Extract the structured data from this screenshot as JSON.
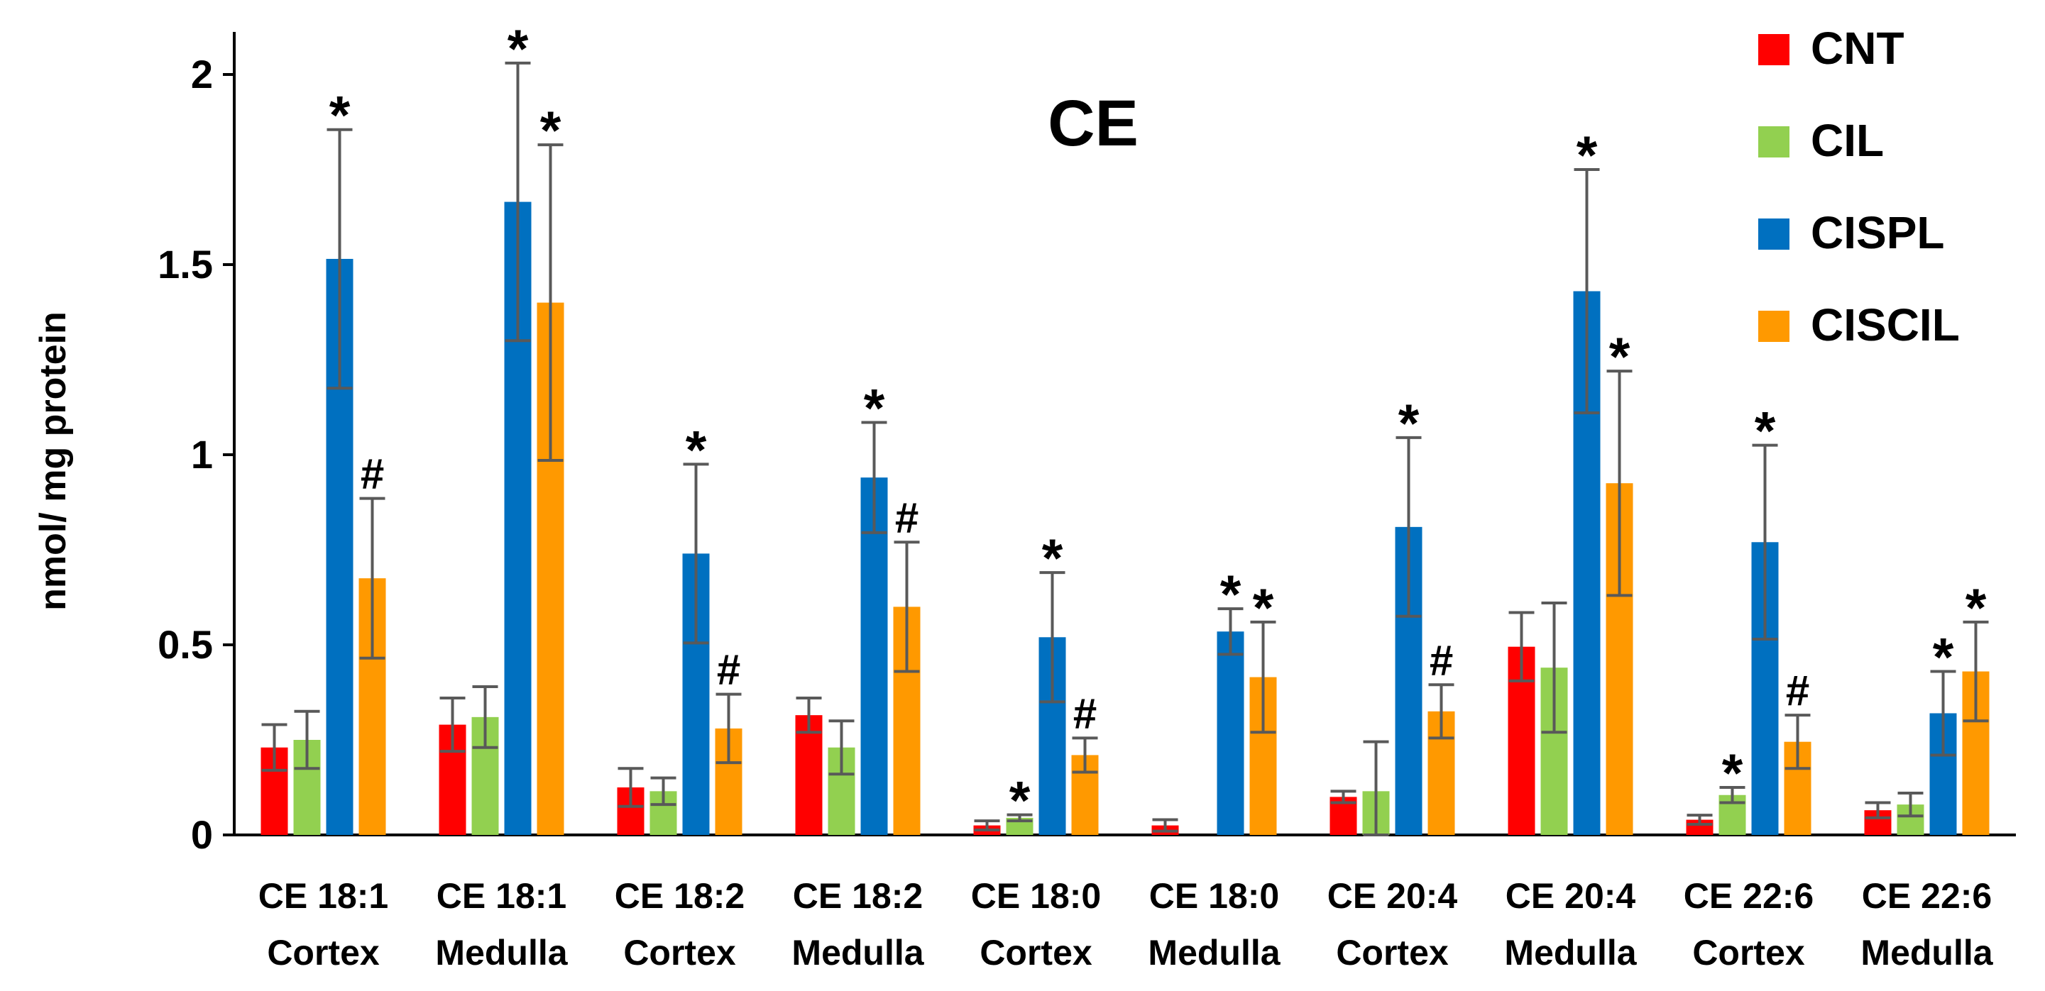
{
  "chart_data": {
    "type": "bar",
    "title": "CE",
    "ylabel": "nmol/ mg protein",
    "xlabel": "",
    "ylim": [
      0,
      2
    ],
    "yticks": [
      0,
      0.5,
      1,
      1.5,
      2
    ],
    "ytick_labels": [
      "0",
      "0.5",
      "1",
      "1.5",
      "2"
    ],
    "categories": [
      {
        "line1": "CE 18:1",
        "line2": "Cortex"
      },
      {
        "line1": "CE 18:1",
        "line2": "Medulla"
      },
      {
        "line1": "CE 18:2",
        "line2": "Cortex"
      },
      {
        "line1": "CE 18:2",
        "line2": "Medulla"
      },
      {
        "line1": "CE 18:0",
        "line2": "Cortex"
      },
      {
        "line1": "CE 18:0",
        "line2": "Medulla"
      },
      {
        "line1": "CE 20:4",
        "line2": "Cortex"
      },
      {
        "line1": "CE 20:4",
        "line2": "Medulla"
      },
      {
        "line1": "CE 22:6",
        "line2": "Cortex"
      },
      {
        "line1": "CE 22:6",
        "line2": "Medulla"
      }
    ],
    "legend_position": "top-right",
    "series": [
      {
        "name": "CNT",
        "color": "#ff0000",
        "values": [
          0.23,
          0.29,
          0.125,
          0.315,
          0.025,
          0.025,
          0.1,
          0.495,
          0.04,
          0.065
        ],
        "errors": [
          0.06,
          0.07,
          0.05,
          0.045,
          0.012,
          0.015,
          0.015,
          0.09,
          0.012,
          0.02
        ],
        "annotations": [
          "",
          "",
          "",
          "",
          "",
          "",
          "",
          "",
          "",
          ""
        ]
      },
      {
        "name": "CIL",
        "color": "#92d050",
        "values": [
          0.25,
          0.31,
          0.115,
          0.23,
          0.045,
          0.0,
          0.115,
          0.44,
          0.105,
          0.08
        ],
        "errors": [
          0.075,
          0.08,
          0.035,
          0.07,
          0.008,
          0.0,
          0.13,
          0.17,
          0.02,
          0.03
        ],
        "annotations": [
          "",
          "",
          "",
          "",
          "*",
          "",
          "",
          "",
          "*",
          ""
        ]
      },
      {
        "name": "CISPL",
        "color": "#0070c0",
        "values": [
          1.515,
          1.665,
          0.74,
          0.94,
          0.52,
          0.535,
          0.81,
          1.43,
          0.77,
          0.32
        ],
        "errors": [
          0.34,
          0.365,
          0.235,
          0.145,
          0.17,
          0.06,
          0.235,
          0.32,
          0.255,
          0.11
        ],
        "annotations": [
          "*",
          "*",
          "*",
          "*",
          "*",
          "*",
          "*",
          "*",
          "*",
          "*"
        ]
      },
      {
        "name": "CISCIL",
        "color": "#ff9900",
        "values": [
          0.675,
          1.4,
          0.28,
          0.6,
          0.21,
          0.415,
          0.325,
          0.925,
          0.245,
          0.43
        ],
        "errors": [
          0.21,
          0.415,
          0.09,
          0.17,
          0.045,
          0.145,
          0.07,
          0.295,
          0.07,
          0.13
        ],
        "annotations": [
          "#",
          "*",
          "#",
          "#",
          "#",
          "*",
          "#",
          "*",
          "#",
          "*"
        ]
      }
    ]
  }
}
